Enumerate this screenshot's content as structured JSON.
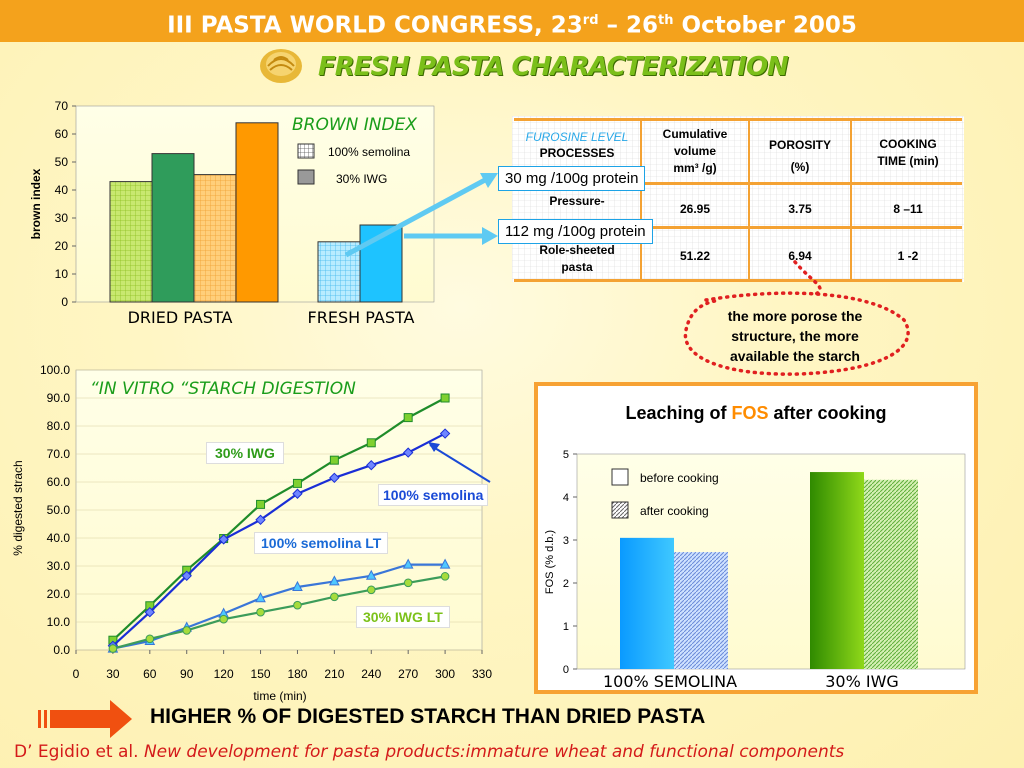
{
  "header": {
    "title_main": "III PASTA WORLD CONGRESS, 23",
    "title_sup1": "rd",
    "title_mid": " – 26",
    "title_sup2": "th",
    "title_end": " October 2005",
    "subtitle": "FRESH PASTA CHARACTERIZATION"
  },
  "colors": {
    "header_bg": "#f4a21c",
    "green_dark": "#2f9c4b",
    "green_light": "#9ad02a",
    "orange": "#ff9900",
    "orange_light": "#ffb84d",
    "cyan": "#1ec3ff",
    "blue_line": "#1a2ed6",
    "blue_mid": "#3a76d8",
    "red_dotted": "#e02020"
  },
  "brown_index_chart": {
    "title": "BROWN INDEX",
    "ylabel": "brown index",
    "legend": [
      "100% semolina",
      "30% IWG"
    ],
    "groups": [
      "DRIED PASTA",
      "FRESH PASTA"
    ]
  },
  "process_table": {
    "overlay_label": "FUROSINE LEVEL",
    "headers": [
      "PROCESSES",
      "Cumulative volume (mm³ /g)",
      "POROSITY (%)",
      "COOKING TIME (min)"
    ],
    "header_cum_1": "Cumulative",
    "header_cum_2": "volume",
    "header_cum_3": "mm³ /g)",
    "header_por_1": "POROSITY",
    "header_por_2": "(%)",
    "header_cook_1": "COOKING",
    "header_cook_2": "TIME (min)",
    "rows": [
      {
        "process_1": "Pressure-",
        "process_2": "",
        "volume": "26.95",
        "porosity": "3.75",
        "cooking": "8 –11"
      },
      {
        "process_1": "Role-sheeted",
        "process_2": "pasta",
        "volume": "51.22",
        "porosity": "6.94",
        "cooking": "1 -2"
      }
    ],
    "callouts": [
      "30 mg /100g protein",
      "112 mg /100g protein"
    ],
    "note": "the more porose the structure, the more available the starch",
    "note_1": "the more porose the",
    "note_2": "structure, the more",
    "note_3": "available the starch"
  },
  "digestion_chart": {
    "title": "“IN VITRO “STARCH DIGESTION",
    "xlabel": "time (min)",
    "ylabel": "% digested strach",
    "labels": [
      "30% IWG",
      "100% semolina",
      "100% semolina LT",
      "30% IWG  LT"
    ]
  },
  "fos_chart": {
    "title_pre": "Leaching of ",
    "title_fos": "FOS",
    "title_post": " after cooking",
    "ylabel": "FOS (% d.b.)",
    "legend": [
      "before cooking",
      "after cooking"
    ],
    "groups": [
      "100% SEMOLINA",
      "30% IWG"
    ]
  },
  "conclusion": "HIGHER % OF DIGESTED STARCH THAN DRIED PASTA",
  "reference_author": "D’ Egidio et al. ",
  "reference_title": "New development for pasta products:immature wheat and functional components",
  "chart_data": [
    {
      "type": "bar",
      "title": "BROWN INDEX",
      "ylabel": "brown index",
      "ylim": [
        0,
        70
      ],
      "categories": [
        "DRIED PASTA",
        "FRESH PASTA"
      ],
      "series": [
        {
          "name": "100% semolina",
          "values": [
            43,
            21.5
          ]
        },
        {
          "name": "30% IWG",
          "values": [
            53,
            27.5
          ]
        },
        {
          "values": [
            45.5,
            null
          ]
        },
        {
          "values": [
            64,
            null
          ]
        }
      ]
    },
    {
      "type": "line",
      "title": "“IN VITRO “STARCH DIGESTION",
      "xlabel": "time (min)",
      "ylabel": "% digested strach",
      "xlim": [
        0,
        330
      ],
      "ylim": [
        0,
        100
      ],
      "x": [
        30,
        60,
        90,
        120,
        150,
        180,
        210,
        240,
        270,
        300
      ],
      "series": [
        {
          "name": "30% IWG",
          "values": [
            3.5,
            15.8,
            28.5,
            39.8,
            52,
            59.5,
            67.8,
            74,
            83,
            90
          ]
        },
        {
          "name": "100% semolina",
          "values": [
            1.5,
            13.5,
            26.5,
            39.5,
            46.5,
            55.8,
            61.5,
            66,
            70.5,
            77.3
          ]
        },
        {
          "name": "100% semolina LT",
          "values": [
            0.5,
            3.2,
            8,
            13,
            18.5,
            22.5,
            24.5,
            26.5,
            30.5,
            30.5
          ]
        },
        {
          "name": "30% IWG  LT",
          "values": [
            0.5,
            4,
            7,
            11,
            13.5,
            16,
            19,
            21.5,
            24,
            26.3
          ]
        }
      ]
    },
    {
      "type": "bar",
      "title": "Leaching of FOS after cooking",
      "ylabel": "FOS (% d.b.)",
      "ylim": [
        0,
        5
      ],
      "categories": [
        "100% SEMOLINA",
        "30% IWG"
      ],
      "series": [
        {
          "name": "before cooking",
          "values": [
            3.05,
            4.58
          ]
        },
        {
          "name": "after cooking",
          "values": [
            2.72,
            4.4
          ]
        }
      ]
    }
  ]
}
